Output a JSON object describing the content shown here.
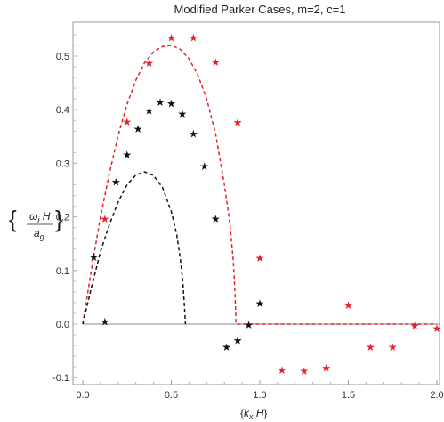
{
  "chart_data": {
    "type": "scatter",
    "title": "Modified Parker Cases, m=2, c=1",
    "xlabel": {
      "open": "{",
      "main": "k",
      "sub": "x",
      "after": " H",
      "close": "}"
    },
    "ylabel": {
      "open": "{",
      "num_main": "ω",
      "num_sub": "i",
      "num_after": " H",
      "den_main": "a",
      "den_sub": "g",
      "close": "}"
    },
    "xlim": [
      0,
      2.0
    ],
    "ylim": [
      -0.12,
      0.57
    ],
    "xticks": [
      "0.0",
      "0.5",
      "1.0",
      "1.5",
      "2.0"
    ],
    "xtick_values": [
      0,
      0.5,
      1.0,
      1.5,
      2.0
    ],
    "yticks": [
      "-0.1",
      "0.0",
      "0.1",
      "0.2",
      "0.3",
      "0.4",
      "0.5"
    ],
    "ytick_values": [
      -0.1,
      0,
      0.1,
      0.2,
      0.3,
      0.4,
      0.5
    ],
    "grid": false,
    "colors": {
      "red": "#e8202a",
      "black": "#111111",
      "zero_line": "#888888"
    },
    "series": [
      {
        "marker": "star",
        "color": "#e8202a",
        "points": [
          {
            "x": 0.125,
            "y": 0.196
          },
          {
            "x": 0.25,
            "y": 0.377
          },
          {
            "x": 0.375,
            "y": 0.487
          },
          {
            "x": 0.5,
            "y": 0.534
          },
          {
            "x": 0.625,
            "y": 0.534
          },
          {
            "x": 0.75,
            "y": 0.488
          },
          {
            "x": 0.875,
            "y": 0.376
          },
          {
            "x": 1.0,
            "y": 0.123
          },
          {
            "x": 1.125,
            "y": -0.086
          },
          {
            "x": 1.25,
            "y": -0.088
          },
          {
            "x": 1.375,
            "y": -0.082
          },
          {
            "x": 1.5,
            "y": 0.035
          },
          {
            "x": 1.625,
            "y": -0.043
          },
          {
            "x": 1.75,
            "y": -0.043
          },
          {
            "x": 1.875,
            "y": -0.003
          },
          {
            "x": 2.0,
            "y": -0.008
          }
        ]
      },
      {
        "marker": "star",
        "color": "#111111",
        "points": [
          {
            "x": 0.0625,
            "y": 0.125
          },
          {
            "x": 0.125,
            "y": 0.004
          },
          {
            "x": 0.1875,
            "y": 0.265
          },
          {
            "x": 0.25,
            "y": 0.316
          },
          {
            "x": 0.3125,
            "y": 0.364
          },
          {
            "x": 0.375,
            "y": 0.398
          },
          {
            "x": 0.4375,
            "y": 0.414
          },
          {
            "x": 0.5,
            "y": 0.411
          },
          {
            "x": 0.5625,
            "y": 0.392
          },
          {
            "x": 0.625,
            "y": 0.355
          },
          {
            "x": 0.6875,
            "y": 0.294
          },
          {
            "x": 0.75,
            "y": 0.196
          },
          {
            "x": 0.8125,
            "y": -0.043
          },
          {
            "x": 0.875,
            "y": -0.031
          },
          {
            "x": 0.9375,
            "y": -0.002
          },
          {
            "x": 1.0,
            "y": 0.038
          }
        ]
      }
    ],
    "curves": [
      {
        "style": "dashed",
        "color": "#e8202a",
        "x": [
          0,
          0.05,
          0.1,
          0.15,
          0.2,
          0.25,
          0.3,
          0.35,
          0.4,
          0.45,
          0.5,
          0.55,
          0.6,
          0.65,
          0.7,
          0.75,
          0.8,
          0.83,
          0.85,
          0.86,
          0.866,
          2.0
        ],
        "y": [
          0,
          0.104,
          0.2,
          0.28,
          0.352,
          0.41,
          0.455,
          0.488,
          0.508,
          0.518,
          0.52,
          0.513,
          0.495,
          0.465,
          0.42,
          0.355,
          0.26,
          0.19,
          0.12,
          0.06,
          0,
          0
        ]
      },
      {
        "style": "dashed",
        "color": "#111111",
        "x": [
          0,
          0.05,
          0.1,
          0.15,
          0.2,
          0.25,
          0.3,
          0.35,
          0.4,
          0.45,
          0.5,
          0.53,
          0.55,
          0.565,
          0.575,
          0.58
        ],
        "y": [
          0,
          0.07,
          0.135,
          0.185,
          0.228,
          0.26,
          0.278,
          0.284,
          0.277,
          0.255,
          0.21,
          0.168,
          0.125,
          0.08,
          0.03,
          0
        ]
      }
    ]
  }
}
